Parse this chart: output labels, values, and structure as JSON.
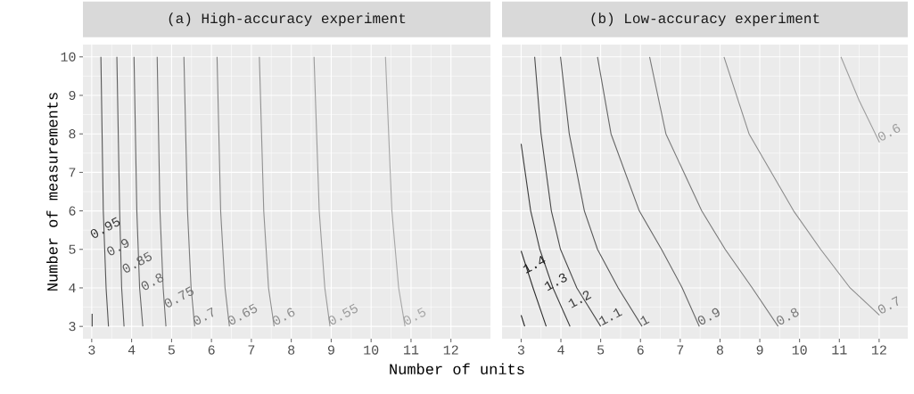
{
  "chart_data": [
    {
      "type": "line",
      "title": "(a) High-accuracy experiment",
      "xlabel": "Number of units",
      "ylabel": "Number of measurements",
      "xlim": [
        2.78,
        12.99
      ],
      "ylim": [
        2.68,
        10.32
      ],
      "xticks": [
        3,
        4,
        5,
        6,
        7,
        8,
        9,
        10,
        11,
        12
      ],
      "yticks": [
        3,
        4,
        5,
        6,
        7,
        8,
        9,
        10
      ],
      "grid": true,
      "series": [
        {
          "name": "0.95",
          "color": "#3a3a3a",
          "x": [
            3.01,
            3.01
          ],
          "values": [
            3.33,
            3.0
          ]
        },
        {
          "name": "0.9",
          "color": "#555555",
          "x": [
            3.23,
            3.29,
            3.36,
            3.42
          ],
          "values": [
            10,
            6,
            4,
            3
          ]
        },
        {
          "name": "0.85",
          "color": "#5e5e5e",
          "x": [
            3.63,
            3.7,
            3.75,
            3.81
          ],
          "values": [
            10,
            6,
            4,
            3
          ]
        },
        {
          "name": "0.8",
          "color": "#666666",
          "x": [
            4.06,
            4.13,
            4.2,
            4.28
          ],
          "values": [
            10,
            6,
            4,
            3
          ]
        },
        {
          "name": "0.75",
          "color": "#707070",
          "x": [
            4.64,
            4.71,
            4.79,
            4.86
          ],
          "values": [
            10,
            6,
            4,
            3
          ]
        },
        {
          "name": "0.7",
          "color": "#7a7a7a",
          "x": [
            5.31,
            5.4,
            5.49,
            5.58
          ],
          "values": [
            10,
            6,
            4,
            3
          ]
        },
        {
          "name": "0.65",
          "color": "#858585",
          "x": [
            6.14,
            6.23,
            6.34,
            6.45
          ],
          "values": [
            10,
            6,
            4,
            3
          ]
        },
        {
          "name": "0.6",
          "color": "#909090",
          "x": [
            7.2,
            7.31,
            7.43,
            7.57
          ],
          "values": [
            10,
            6,
            4,
            3
          ]
        },
        {
          "name": "0.55",
          "color": "#9a9a9a",
          "x": [
            8.57,
            8.7,
            8.84,
            8.97
          ],
          "values": [
            10,
            6,
            4,
            3
          ]
        },
        {
          "name": "0.5",
          "color": "#a6a6a6",
          "x": [
            10.36,
            10.52,
            10.69,
            10.85
          ],
          "values": [
            10,
            6,
            4,
            3
          ]
        }
      ]
    },
    {
      "type": "line",
      "title": "(b) Low-accuracy experiment",
      "xlim": [
        2.52,
        12.72
      ],
      "ylim": [
        2.68,
        10.32
      ],
      "xticks": [
        3,
        4,
        5,
        6,
        7,
        8,
        9,
        10,
        11,
        12
      ],
      "yticks": [
        3,
        4,
        5,
        6,
        7,
        8,
        9,
        10
      ],
      "grid": true,
      "tick_labels": "x",
      "series": [
        {
          "name": "1.4",
          "color": "#1a1a1a",
          "x": [
            3.0,
            3.09
          ],
          "values": [
            3.29,
            3.0
          ]
        },
        {
          "name": "1.3",
          "color": "#2e2e2e",
          "x": [
            3.0,
            3.3,
            3.63
          ],
          "values": [
            4.96,
            4,
            3
          ]
        },
        {
          "name": "1.2",
          "color": "#3d3d3d",
          "x": [
            3.0,
            3.24,
            3.47,
            3.8,
            4.23
          ],
          "values": [
            7.74,
            6,
            5,
            4,
            3
          ]
        },
        {
          "name": "1.1",
          "color": "#4a4a4a",
          "x": [
            3.34,
            3.5,
            3.76,
            3.99,
            4.4,
            5.0
          ],
          "values": [
            10,
            8,
            6,
            5,
            4,
            3
          ]
        },
        {
          "name": "1",
          "color": "#585858",
          "x": [
            3.99,
            4.21,
            4.59,
            4.92,
            5.44,
            6.04
          ],
          "values": [
            10,
            8,
            6,
            5,
            4,
            3
          ]
        },
        {
          "name": "0.9",
          "color": "#666666",
          "x": [
            4.92,
            5.26,
            5.97,
            6.53,
            7.05,
            7.48
          ],
          "values": [
            10,
            8,
            6,
            5,
            4,
            3
          ]
        },
        {
          "name": "0.8",
          "color": "#7a7a7a",
          "x": [
            6.23,
            6.64,
            7.54,
            8.13,
            8.81,
            9.46
          ],
          "values": [
            10,
            8,
            6,
            5,
            4,
            3
          ]
        },
        {
          "name": "0.7",
          "color": "#8c8c8c",
          "x": [
            8.1,
            8.73,
            9.85,
            10.53,
            11.27,
            12.01
          ],
          "values": [
            10,
            8,
            6,
            5,
            4,
            3.29
          ]
        },
        {
          "name": "0.6",
          "color": "#9e9e9e",
          "x": [
            11.04,
            11.5,
            12.01
          ],
          "values": [
            10,
            8.86,
            7.78
          ]
        }
      ]
    }
  ]
}
